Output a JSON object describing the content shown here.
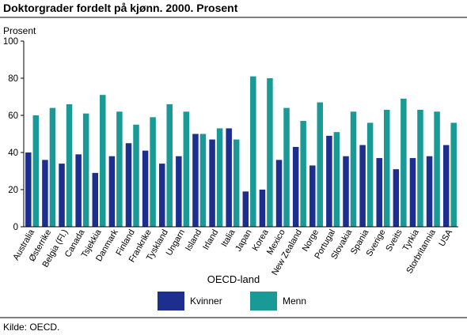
{
  "title": "Doktorgrader fordelt på kjønn. 2000. Prosent",
  "source": "Kilde: OECD.",
  "chart_data": {
    "type": "bar",
    "title": "Doktorgrader fordelt på kjønn. 2000. Prosent",
    "ylabel": "Prosent",
    "xlabel": "",
    "ylim": [
      0,
      100
    ],
    "yticks": [
      0,
      20,
      40,
      60,
      80,
      100
    ],
    "grid": false,
    "legend": {
      "title": "OECD-land",
      "placement": "bottom"
    },
    "categories": [
      "Australia",
      "Østerrike",
      "Belgia (Fl.)",
      "Canada",
      "Tsjekkia",
      "Danmark",
      "Finland",
      "Frankrike",
      "Tyskland",
      "Ungarn",
      "Island",
      "Irland",
      "Italia",
      "Japan",
      "Korea",
      "Mexico",
      "New Zealand",
      "Norge",
      "Portugal",
      "Slovakia",
      "Spania",
      "Sverige",
      "Sveits",
      "Tyrkia",
      "Storbritannia",
      "USA"
    ],
    "series": [
      {
        "name": "Kvinner",
        "color": "#1c2f8f",
        "values": [
          40,
          36,
          34,
          39,
          29,
          38,
          45,
          41,
          34,
          38,
          50,
          47,
          53,
          19,
          20,
          36,
          43,
          33,
          49,
          38,
          44,
          37,
          31,
          37,
          38,
          44
        ]
      },
      {
        "name": "Menn",
        "color": "#1a9a96",
        "values": [
          60,
          64,
          66,
          61,
          71,
          62,
          55,
          59,
          66,
          62,
          50,
          53,
          47,
          81,
          80,
          64,
          57,
          67,
          51,
          62,
          56,
          63,
          69,
          63,
          62,
          56
        ]
      }
    ]
  }
}
